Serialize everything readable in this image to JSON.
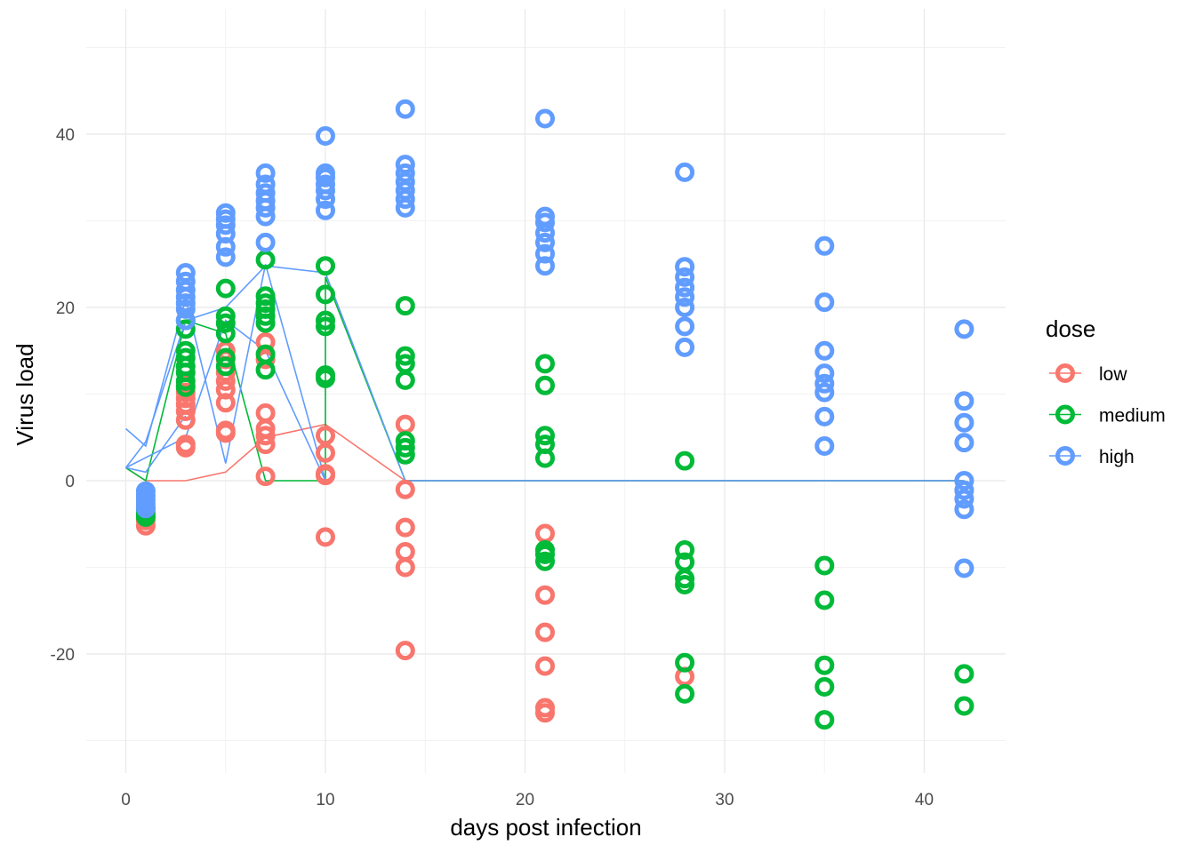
{
  "chart_data": {
    "type": "scatter",
    "xlabel": "days post infection",
    "ylabel": "Virus load",
    "xlim": [
      -2,
      44
    ],
    "ylim": [
      -30,
      50
    ],
    "x_ticks": [
      0,
      10,
      20,
      30,
      40
    ],
    "y_ticks": [
      -20,
      0,
      20,
      40
    ],
    "grid": true,
    "legend": {
      "title": "dose",
      "position": "right"
    },
    "series": [
      {
        "name": "low",
        "color": "#F8766D",
        "points": [
          [
            1,
            -5.2
          ],
          [
            1,
            -4.6
          ],
          [
            1,
            -4.2
          ],
          [
            1,
            -3.9
          ],
          [
            3,
            4.2
          ],
          [
            3,
            3.8
          ],
          [
            3,
            7.0
          ],
          [
            3,
            8.0
          ],
          [
            3,
            8.8
          ],
          [
            3,
            9.5
          ],
          [
            3,
            10.2
          ],
          [
            3,
            11.0
          ],
          [
            5,
            5.8
          ],
          [
            5,
            5.5
          ],
          [
            5,
            9.0
          ],
          [
            5,
            10.5
          ],
          [
            5,
            11.5
          ],
          [
            5,
            12.5
          ],
          [
            5,
            14.0
          ],
          [
            5,
            15.0
          ],
          [
            7,
            0.5
          ],
          [
            7,
            4.2
          ],
          [
            7,
            5.2
          ],
          [
            7,
            6.0
          ],
          [
            7,
            7.8
          ],
          [
            7,
            14.0
          ],
          [
            7,
            16.0
          ],
          [
            10,
            -6.5
          ],
          [
            10,
            0.8
          ],
          [
            10,
            0.6
          ],
          [
            10,
            3.2
          ],
          [
            10,
            5.2
          ],
          [
            14,
            -19.6
          ],
          [
            14,
            -10.0
          ],
          [
            14,
            -8.2
          ],
          [
            14,
            -5.4
          ],
          [
            14,
            -1.0
          ],
          [
            14,
            6.5
          ],
          [
            21,
            -26.8
          ],
          [
            21,
            -26.2
          ],
          [
            21,
            -21.4
          ],
          [
            21,
            -17.5
          ],
          [
            21,
            -13.2
          ],
          [
            21,
            -6.1
          ],
          [
            28,
            -22.6
          ]
        ],
        "line": [
          [
            0,
            1.5
          ],
          [
            1,
            0
          ],
          [
            3,
            0
          ],
          [
            5,
            1.0
          ],
          [
            7,
            5.0
          ],
          [
            10,
            6.5
          ],
          [
            14,
            0
          ],
          [
            42,
            0
          ]
        ]
      },
      {
        "name": "medium",
        "color": "#00BA38",
        "points": [
          [
            1,
            -4.2
          ],
          [
            1,
            -3.7
          ],
          [
            1,
            -3.2
          ],
          [
            3,
            10.8
          ],
          [
            3,
            11.5
          ],
          [
            3,
            12.5
          ],
          [
            3,
            13.2
          ],
          [
            3,
            14.2
          ],
          [
            3,
            15.0
          ],
          [
            3,
            17.5
          ],
          [
            3,
            18.5
          ],
          [
            5,
            13.2
          ],
          [
            5,
            14.2
          ],
          [
            5,
            17.0
          ],
          [
            5,
            18.2
          ],
          [
            5,
            19.0
          ],
          [
            5,
            22.2
          ],
          [
            7,
            12.8
          ],
          [
            7,
            14.6
          ],
          [
            7,
            18.2
          ],
          [
            7,
            19.0
          ],
          [
            7,
            19.8
          ],
          [
            7,
            20.5
          ],
          [
            7,
            21.3
          ],
          [
            7,
            25.5
          ],
          [
            10,
            11.8
          ],
          [
            10,
            12.2
          ],
          [
            10,
            17.8
          ],
          [
            10,
            18.5
          ],
          [
            10,
            21.5
          ],
          [
            10,
            24.8
          ],
          [
            14,
            3.0
          ],
          [
            14,
            3.8
          ],
          [
            14,
            4.6
          ],
          [
            14,
            11.6
          ],
          [
            14,
            13.5
          ],
          [
            14,
            14.4
          ],
          [
            14,
            20.2
          ],
          [
            21,
            -9.3
          ],
          [
            21,
            -8.5
          ],
          [
            21,
            -8.0
          ],
          [
            21,
            2.6
          ],
          [
            21,
            4.2
          ],
          [
            21,
            5.2
          ],
          [
            21,
            11.0
          ],
          [
            21,
            13.5
          ],
          [
            28,
            -24.6
          ],
          [
            28,
            -21.0
          ],
          [
            28,
            -12.0
          ],
          [
            28,
            -11.3
          ],
          [
            28,
            -9.4
          ],
          [
            28,
            -8.0
          ],
          [
            28,
            2.3
          ],
          [
            35,
            -27.6
          ],
          [
            35,
            -23.8
          ],
          [
            35,
            -21.3
          ],
          [
            35,
            -13.8
          ],
          [
            35,
            -9.8
          ],
          [
            42,
            -26.0
          ],
          [
            42,
            -22.3
          ]
        ],
        "line": [
          [
            0,
            1.5
          ],
          [
            1,
            0
          ],
          [
            3,
            18.5
          ],
          [
            5,
            17.0
          ],
          [
            7,
            0
          ],
          [
            10,
            0
          ],
          [
            10,
            23.5
          ],
          [
            14,
            0
          ],
          [
            42,
            0
          ]
        ]
      },
      {
        "name": "high",
        "color": "#619CFF",
        "points": [
          [
            1,
            -3.2
          ],
          [
            1,
            -2.7
          ],
          [
            1,
            -2.2
          ],
          [
            1,
            -1.7
          ],
          [
            1,
            -1.2
          ],
          [
            3,
            18.5
          ],
          [
            3,
            19.8
          ],
          [
            3,
            20.5
          ],
          [
            3,
            21.2
          ],
          [
            3,
            22.0
          ],
          [
            3,
            23.0
          ],
          [
            3,
            24.0
          ],
          [
            5,
            25.8
          ],
          [
            5,
            27.0
          ],
          [
            5,
            28.5
          ],
          [
            5,
            29.5
          ],
          [
            5,
            30.2
          ],
          [
            5,
            30.9
          ],
          [
            7,
            27.5
          ],
          [
            7,
            30.5
          ],
          [
            7,
            31.5
          ],
          [
            7,
            32.3
          ],
          [
            7,
            33.2
          ],
          [
            7,
            34.2
          ],
          [
            7,
            35.5
          ],
          [
            10,
            31.2
          ],
          [
            10,
            32.5
          ],
          [
            10,
            33.5
          ],
          [
            10,
            34.2
          ],
          [
            10,
            35.0
          ],
          [
            10,
            35.5
          ],
          [
            10,
            39.8
          ],
          [
            14,
            31.5
          ],
          [
            14,
            32.5
          ],
          [
            14,
            33.5
          ],
          [
            14,
            34.5
          ],
          [
            14,
            35.5
          ],
          [
            14,
            36.5
          ],
          [
            14,
            42.9
          ],
          [
            21,
            24.8
          ],
          [
            21,
            26.2
          ],
          [
            21,
            27.5
          ],
          [
            21,
            28.6
          ],
          [
            21,
            29.8
          ],
          [
            21,
            30.5
          ],
          [
            21,
            41.8
          ],
          [
            28,
            15.4
          ],
          [
            28,
            17.8
          ],
          [
            28,
            20.0
          ],
          [
            28,
            21.2
          ],
          [
            28,
            22.3
          ],
          [
            28,
            23.5
          ],
          [
            28,
            24.7
          ],
          [
            28,
            35.6
          ],
          [
            35,
            4.0
          ],
          [
            35,
            7.4
          ],
          [
            35,
            10.2
          ],
          [
            35,
            11.2
          ],
          [
            35,
            12.4
          ],
          [
            35,
            15.0
          ],
          [
            35,
            20.6
          ],
          [
            35,
            27.1
          ],
          [
            42,
            -10.1
          ],
          [
            42,
            -3.3
          ],
          [
            42,
            -2.1
          ],
          [
            42,
            -1.1
          ],
          [
            42,
            0.0
          ],
          [
            42,
            4.4
          ],
          [
            42,
            6.7
          ],
          [
            42,
            9.2
          ],
          [
            42,
            17.5
          ]
        ],
        "lines": [
          [
            [
              0,
              1.5
            ],
            [
              1,
              4.5
            ],
            [
              3,
              18.5
            ],
            [
              5,
              20.0
            ],
            [
              7,
              24.8
            ],
            [
              10,
              24.0
            ],
            [
              14,
              0
            ],
            [
              42,
              0
            ]
          ],
          [
            [
              0,
              6.0
            ],
            [
              1,
              4.0
            ],
            [
              3,
              21.0
            ],
            [
              5,
              2.0
            ],
            [
              7,
              25.0
            ],
            [
              10,
              0
            ]
          ],
          [
            [
              0,
              1.5
            ],
            [
              3,
              5.0
            ],
            [
              5,
              18.5
            ],
            [
              7,
              15.0
            ],
            [
              10,
              0
            ]
          ],
          [
            [
              0,
              1.5
            ],
            [
              1,
              1.0
            ],
            [
              3,
              7.5
            ]
          ]
        ]
      }
    ]
  }
}
